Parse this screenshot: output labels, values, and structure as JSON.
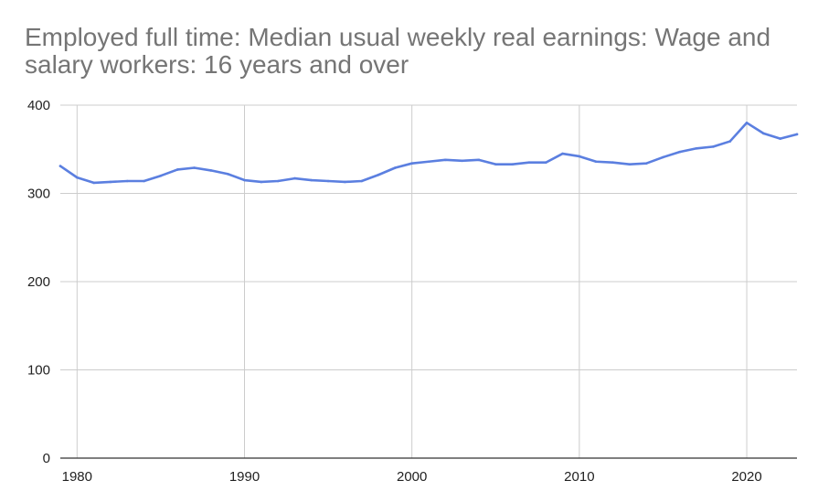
{
  "chart_data": {
    "type": "line",
    "title": "Employed full time: Median usual weekly real earnings: Wage and salary workers: 16 years and over",
    "xlabel": "",
    "ylabel": "",
    "xlim": [
      1979,
      2023
    ],
    "ylim": [
      0,
      400
    ],
    "x_ticks": [
      1980,
      1990,
      2000,
      2010,
      2020
    ],
    "y_ticks": [
      0,
      100,
      200,
      300,
      400
    ],
    "grid": true,
    "legend": "none",
    "series": [
      {
        "color": "#5b7fe0",
        "x": [
          1979,
          1980,
          1981,
          1982,
          1983,
          1984,
          1985,
          1986,
          1987,
          1988,
          1989,
          1990,
          1991,
          1992,
          1993,
          1994,
          1995,
          1996,
          1997,
          1998,
          1999,
          2000,
          2001,
          2002,
          2003,
          2004,
          2005,
          2006,
          2007,
          2008,
          2009,
          2010,
          2011,
          2012,
          2013,
          2014,
          2015,
          2016,
          2017,
          2018,
          2019,
          2020,
          2021,
          2022,
          2023
        ],
        "y": [
          331,
          318,
          312,
          313,
          314,
          314,
          320,
          327,
          329,
          326,
          322,
          315,
          313,
          314,
          317,
          315,
          314,
          313,
          314,
          321,
          329,
          334,
          336,
          338,
          337,
          338,
          333,
          333,
          335,
          335,
          345,
          342,
          336,
          335,
          333,
          334,
          341,
          347,
          351,
          353,
          359,
          380,
          368,
          362,
          367
        ]
      }
    ]
  }
}
